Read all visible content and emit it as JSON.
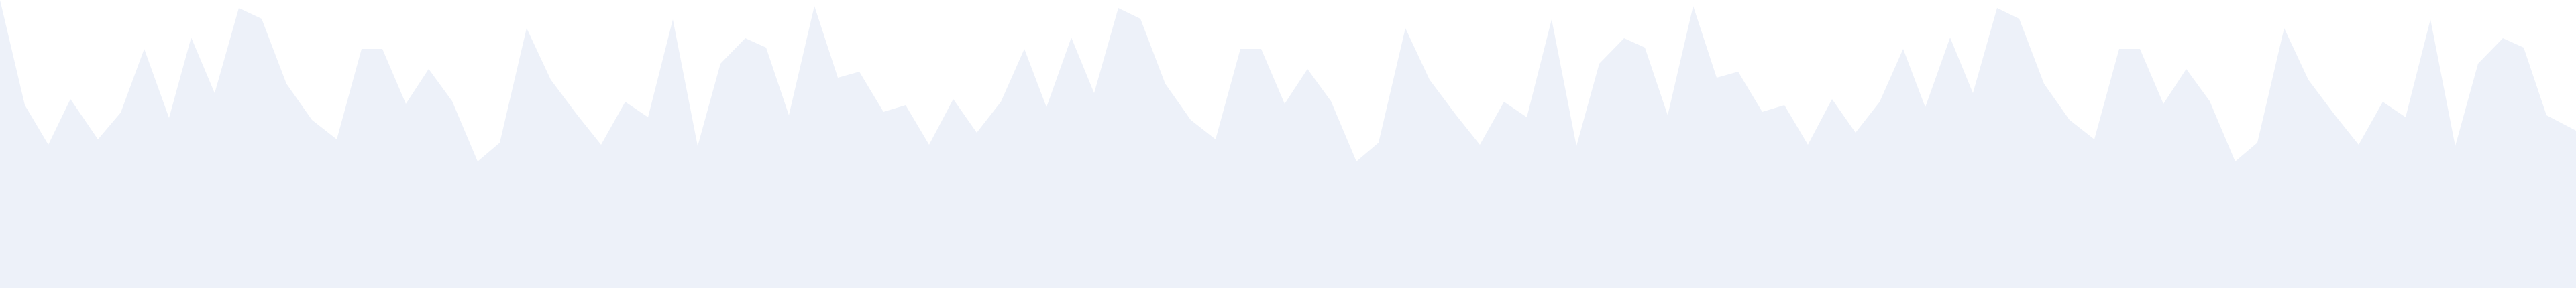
{
  "colors": {
    "background": "#ffffff",
    "fill": "#edf1f9"
  }
}
